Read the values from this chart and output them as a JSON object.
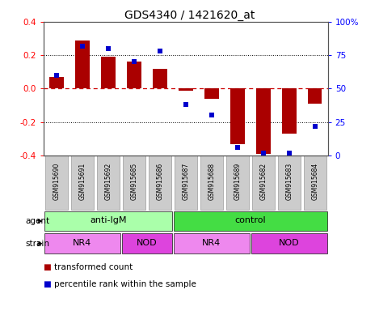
{
  "title": "GDS4340 / 1421620_at",
  "samples": [
    "GSM915690",
    "GSM915691",
    "GSM915692",
    "GSM915685",
    "GSM915686",
    "GSM915687",
    "GSM915688",
    "GSM915689",
    "GSM915682",
    "GSM915683",
    "GSM915684"
  ],
  "transformed_count": [
    0.07,
    0.29,
    0.19,
    0.16,
    0.12,
    -0.01,
    -0.06,
    -0.33,
    -0.39,
    -0.27,
    -0.09
  ],
  "percentile_rank": [
    60,
    82,
    80,
    70,
    78,
    38,
    30,
    6,
    2,
    2,
    22
  ],
  "bar_color": "#aa0000",
  "dot_color": "#0000cc",
  "ylim": [
    -0.4,
    0.4
  ],
  "y2lim": [
    0,
    100
  ],
  "yticks": [
    -0.4,
    -0.2,
    0.0,
    0.2,
    0.4
  ],
  "y2ticks": [
    0,
    25,
    50,
    75,
    100
  ],
  "y2ticklabels": [
    "0",
    "25",
    "50",
    "75",
    "100%"
  ],
  "hlines_dotted": [
    -0.2,
    0.2
  ],
  "hline_zero": 0.0,
  "agent_labels": [
    {
      "text": "anti-IgM",
      "start": 0,
      "end": 5,
      "color": "#aaffaa"
    },
    {
      "text": "control",
      "start": 5,
      "end": 11,
      "color": "#44dd44"
    }
  ],
  "strain_labels": [
    {
      "text": "NR4",
      "start": 0,
      "end": 3,
      "color": "#ee88ee"
    },
    {
      "text": "NOD",
      "start": 3,
      "end": 5,
      "color": "#dd44dd"
    },
    {
      "text": "NR4",
      "start": 5,
      "end": 8,
      "color": "#ee88ee"
    },
    {
      "text": "NOD",
      "start": 8,
      "end": 11,
      "color": "#dd44dd"
    }
  ],
  "legend_items": [
    {
      "color": "#aa0000",
      "label": "transformed count"
    },
    {
      "color": "#0000cc",
      "label": "percentile rank within the sample"
    }
  ],
  "agent_row_label": "agent",
  "strain_row_label": "strain",
  "zero_line_color": "#cc0000",
  "title_fontsize": 10,
  "bar_width": 0.55,
  "sample_box_color": "#cccccc",
  "sample_box_edge": "#999999"
}
